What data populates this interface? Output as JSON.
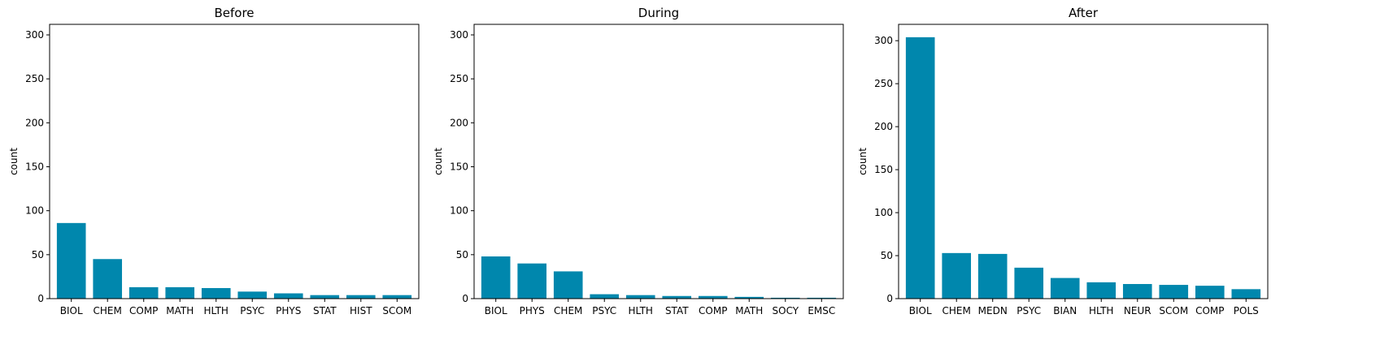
{
  "bar_color": "#0087ad",
  "chart_data": [
    {
      "type": "bar",
      "title": "Before",
      "xlabel": "",
      "ylabel": "count",
      "ylim": [
        0,
        312
      ],
      "yticks": [
        0,
        50,
        100,
        150,
        200,
        250,
        300
      ],
      "categories": [
        "BIOL",
        "CHEM",
        "COMP",
        "MATH",
        "HLTH",
        "PSYC",
        "PHYS",
        "STAT",
        "HIST",
        "SCOM"
      ],
      "values": [
        86,
        45,
        13,
        13,
        12,
        8,
        6,
        4,
        4,
        4
      ],
      "grid": false
    },
    {
      "type": "bar",
      "title": "During",
      "xlabel": "",
      "ylabel": "count",
      "ylim": [
        0,
        312
      ],
      "yticks": [
        0,
        50,
        100,
        150,
        200,
        250,
        300
      ],
      "categories": [
        "BIOL",
        "PHYS",
        "CHEM",
        "PSYC",
        "HLTH",
        "STAT",
        "COMP",
        "MATH",
        "SOCY",
        "EMSC"
      ],
      "values": [
        48,
        40,
        31,
        5,
        4,
        3,
        3,
        2,
        1,
        1
      ],
      "grid": false
    },
    {
      "type": "bar",
      "title": "After",
      "xlabel": "",
      "ylabel": "count",
      "ylim": [
        0,
        319
      ],
      "yticks": [
        0,
        50,
        100,
        150,
        200,
        250,
        300
      ],
      "categories": [
        "BIOL",
        "CHEM",
        "MEDN",
        "PSYC",
        "BIAN",
        "HLTH",
        "NEUR",
        "SCOM",
        "COMP",
        "POLS"
      ],
      "values": [
        304,
        53,
        52,
        36,
        24,
        19,
        17,
        16,
        15,
        11
      ],
      "grid": false
    }
  ]
}
